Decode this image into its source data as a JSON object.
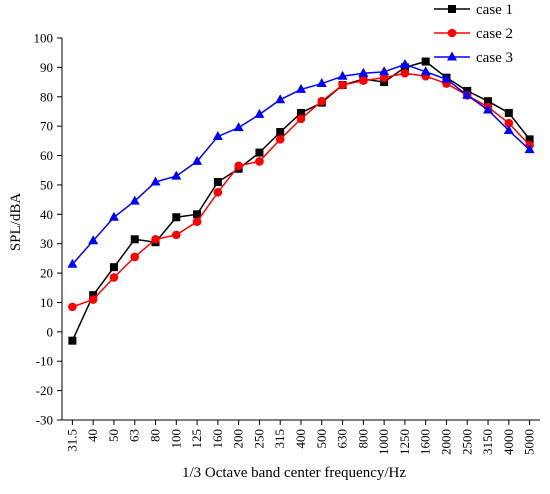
{
  "chart_data": {
    "type": "line",
    "title": "",
    "xlabel": "1/3 Octave band center frequency/Hz",
    "ylabel": "SPL/dBA",
    "ylim": [
      -30,
      100
    ],
    "yticks": [
      -30,
      -20,
      -10,
      0,
      10,
      20,
      30,
      40,
      50,
      60,
      70,
      80,
      90,
      100
    ],
    "grid": false,
    "legend_position": "top-right",
    "categories": [
      "31.5",
      "40",
      "50",
      "63",
      "80",
      "100",
      "125",
      "160",
      "200",
      "250",
      "315",
      "400",
      "500",
      "630",
      "800",
      "1000",
      "1250",
      "1600",
      "2000",
      "2500",
      "3150",
      "4000",
      "5000"
    ],
    "series": [
      {
        "name": "case 1",
        "color": "#000000",
        "marker": "square",
        "values": [
          -3,
          12.5,
          22,
          31.5,
          30.5,
          39,
          40,
          51,
          55.5,
          61,
          68,
          74.5,
          78,
          84,
          86,
          85,
          90,
          92,
          86.5,
          82,
          78.5,
          74.5,
          65.5
        ]
      },
      {
        "name": "case 2",
        "color": "#ff0000",
        "marker": "circle",
        "values": [
          8.5,
          11,
          18.5,
          25.5,
          31.5,
          33,
          37.5,
          47.5,
          56.5,
          58,
          65.5,
          72.5,
          78.5,
          84,
          85.5,
          86.5,
          88,
          87,
          84.5,
          80.5,
          76.5,
          71,
          63.5
        ]
      },
      {
        "name": "case 3",
        "color": "#0000ff",
        "marker": "triangle",
        "values": [
          23,
          31,
          39,
          44.5,
          51,
          53,
          58,
          66.5,
          69.5,
          74,
          79,
          82.5,
          84.5,
          87,
          88,
          88.5,
          91,
          88.5,
          86,
          80.5,
          75.5,
          68.5,
          62
        ]
      }
    ]
  }
}
